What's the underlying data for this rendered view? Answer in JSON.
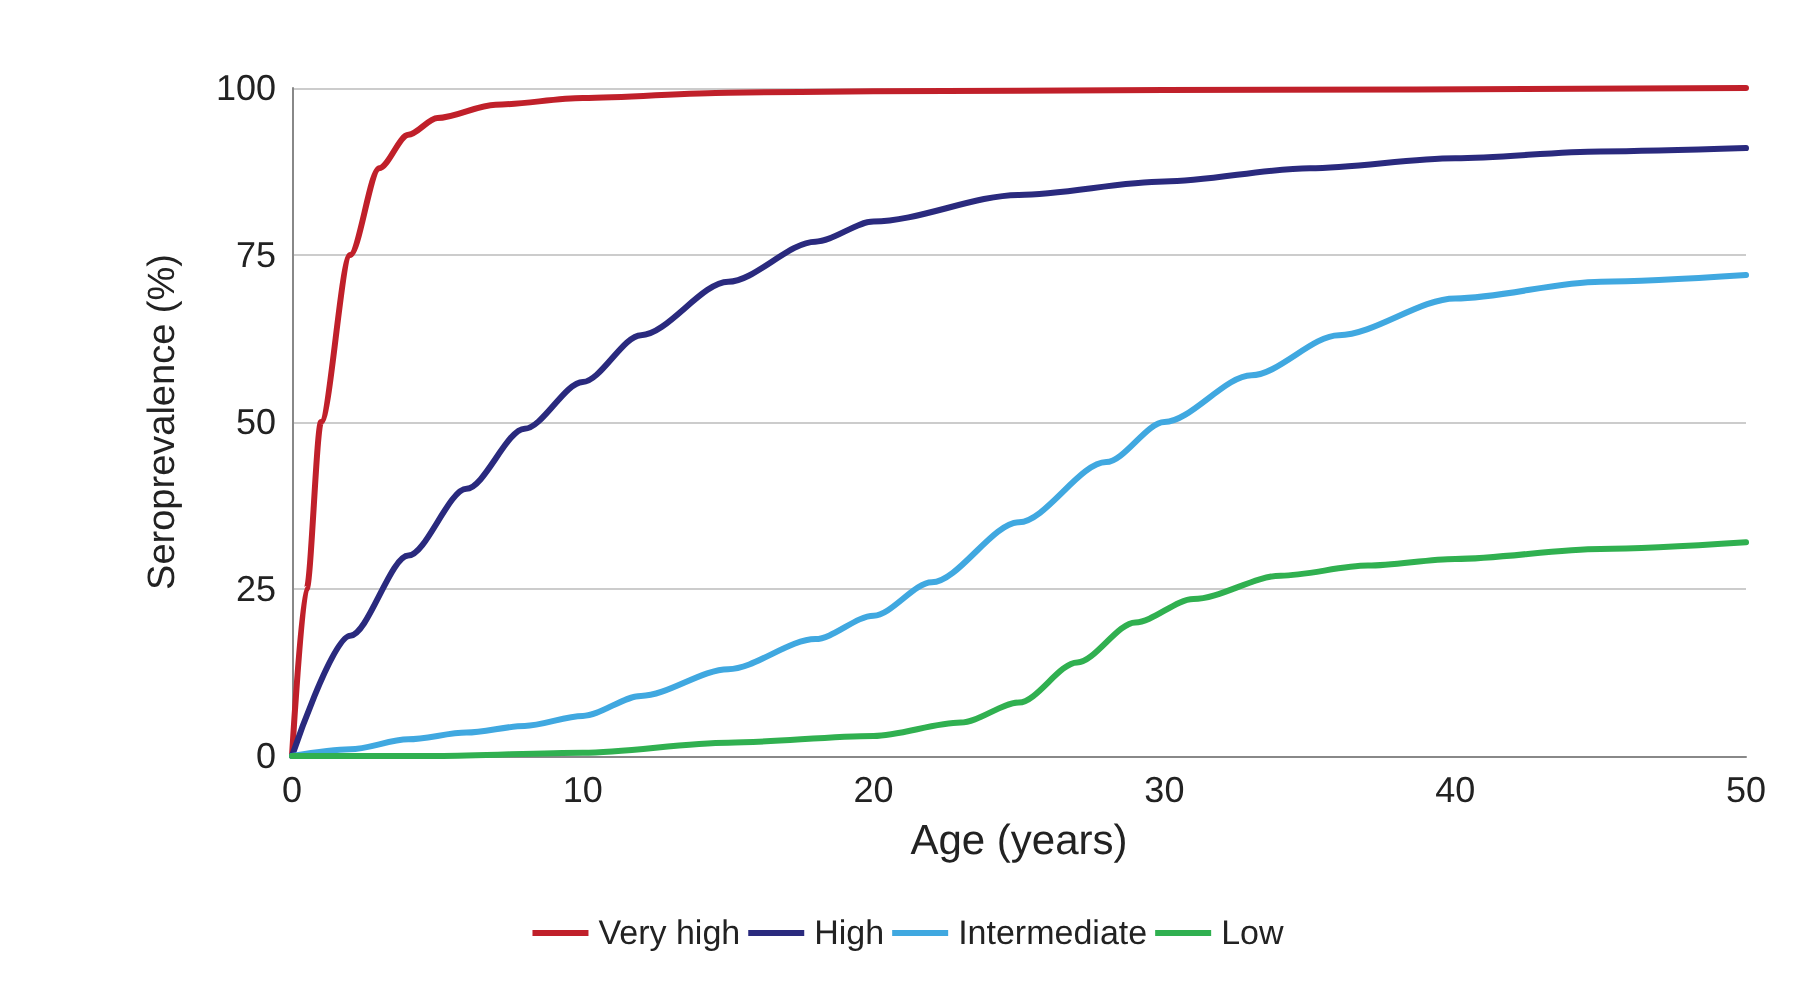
{
  "chart_data": {
    "type": "line",
    "xlabel": "Age (years)",
    "ylabel": "Seroprevalence (%)",
    "xlim": [
      0,
      50
    ],
    "xticks": [
      0,
      10,
      20,
      30,
      40,
      50
    ],
    "ylim": [
      0,
      100
    ],
    "yticks": [
      0,
      25,
      50,
      75,
      100
    ],
    "grid": "y",
    "legend": "bottom",
    "marker": "none",
    "line_style": "solid",
    "series": [
      {
        "name": "Very high",
        "color": "#c0202a",
        "x": [
          0,
          0.5,
          1,
          2,
          3,
          4,
          5,
          7,
          10,
          15,
          20,
          30,
          50
        ],
        "values": [
          0,
          25,
          50,
          75,
          88,
          93,
          95.5,
          97.5,
          98.5,
          99.3,
          99.5,
          99.7,
          100
        ]
      },
      {
        "name": "High",
        "color": "#2a2a7e",
        "x": [
          0,
          2,
          4,
          6,
          8,
          10,
          12,
          15,
          18,
          20,
          25,
          30,
          35,
          40,
          45,
          50
        ],
        "values": [
          0,
          18,
          30,
          40,
          49,
          56,
          63,
          71,
          77,
          80,
          84,
          86,
          88,
          89.5,
          90.5,
          91
        ]
      },
      {
        "name": "Intermediate",
        "color": "#40a8e0",
        "x": [
          0,
          2,
          4,
          6,
          8,
          10,
          12,
          15,
          18,
          20,
          22,
          25,
          28,
          30,
          33,
          36,
          40,
          45,
          50
        ],
        "values": [
          0,
          1,
          2.5,
          3.5,
          4.5,
          6,
          9,
          13,
          17.5,
          21,
          26,
          35,
          44,
          50,
          57,
          63,
          68.5,
          71,
          72
        ]
      },
      {
        "name": "Low",
        "color": "#30b050",
        "x": [
          0,
          5,
          10,
          15,
          20,
          23,
          25,
          27,
          29,
          31,
          34,
          37,
          40,
          45,
          50
        ],
        "values": [
          0,
          0,
          0.5,
          2,
          3,
          5,
          8,
          14,
          20,
          23.5,
          27,
          28.5,
          29.5,
          31,
          32
        ]
      }
    ]
  }
}
